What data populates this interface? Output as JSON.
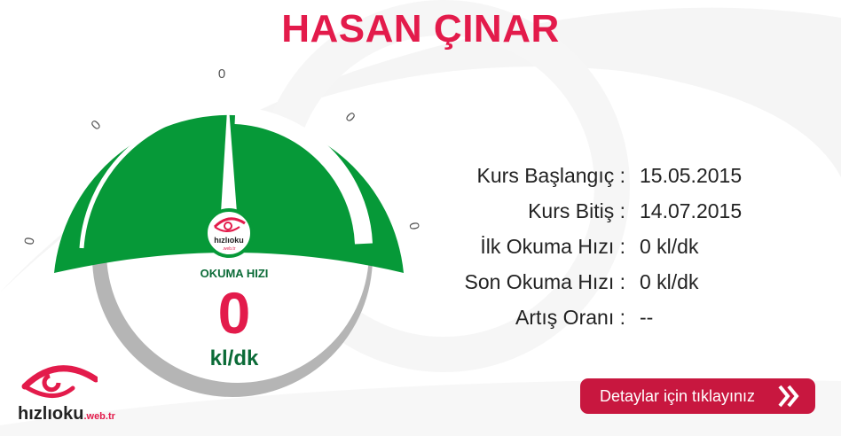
{
  "title": "HASAN ÇINAR",
  "gauge": {
    "ticks": [
      "0",
      "0",
      "0",
      "0",
      "0"
    ],
    "label": "OKUMA HIZI",
    "value": "0",
    "unit": "kl/dk",
    "logo_text": "hızlıoku",
    "logo_sub": ".web.tr",
    "colors": {
      "green": "#069938",
      "dark_green": "#0b6b37",
      "value": "#e31b4b",
      "rim": "#b5b5b5"
    }
  },
  "info": {
    "rows": [
      {
        "label": "Kurs Başlangıç :",
        "value": "15.05.2015"
      },
      {
        "label": "Kurs Bitiş :",
        "value": "14.07.2015"
      },
      {
        "label": "İlk Okuma Hızı :",
        "value": "0 kl/dk"
      },
      {
        "label": "Son Okuma Hızı :",
        "value": "0 kl/dk"
      },
      {
        "label": "Artış Oranı :",
        "value": "--"
      }
    ]
  },
  "button": {
    "label": "Detaylar için tıklayınız",
    "icon": "double-chevron-right-icon",
    "color": "#c8173f"
  },
  "brand": {
    "name": "hızlıoku",
    "suffix": ".web.tr",
    "color": "#e31b4b"
  }
}
